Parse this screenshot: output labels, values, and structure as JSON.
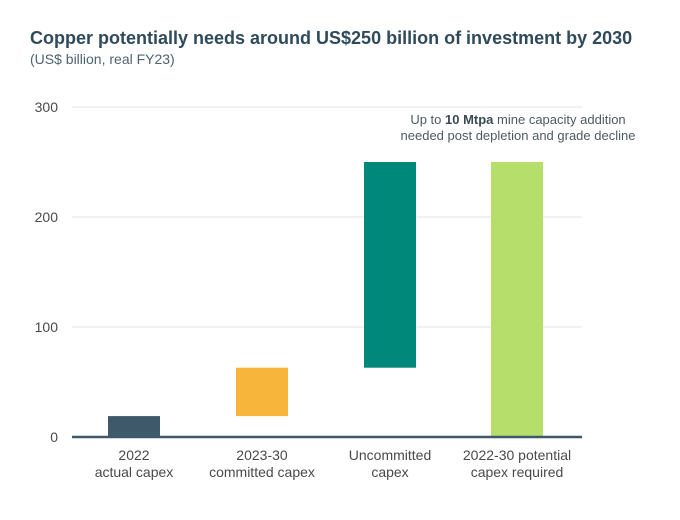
{
  "chart_data": {
    "type": "bar",
    "title": "Copper potentially needs around US$250 billion of investment by 2030",
    "subtitle": "(US$ billion, real FY23)",
    "categories": [
      [
        "2022",
        "actual capex"
      ],
      [
        "2023-30",
        "committed capex"
      ],
      [
        "Uncommitted",
        "capex"
      ],
      [
        "2022-30 potential",
        "capex required"
      ]
    ],
    "bars": [
      {
        "base": 0,
        "value": 19,
        "color": "#3e5a6a"
      },
      {
        "base": 19,
        "value": 63,
        "color": "#f7b53b"
      },
      {
        "base": 63,
        "value": 250,
        "color": "#00897b"
      },
      {
        "base": 0,
        "value": 250,
        "color": "#b5df6a"
      }
    ],
    "ylim": [
      0,
      300
    ],
    "yticks": [
      0,
      100,
      200,
      300
    ],
    "grid": true,
    "annotation": {
      "prefix": "Up to ",
      "bold": "10 Mtpa",
      "suffix": " mine capacity addition needed post depletion and grade decline"
    }
  }
}
